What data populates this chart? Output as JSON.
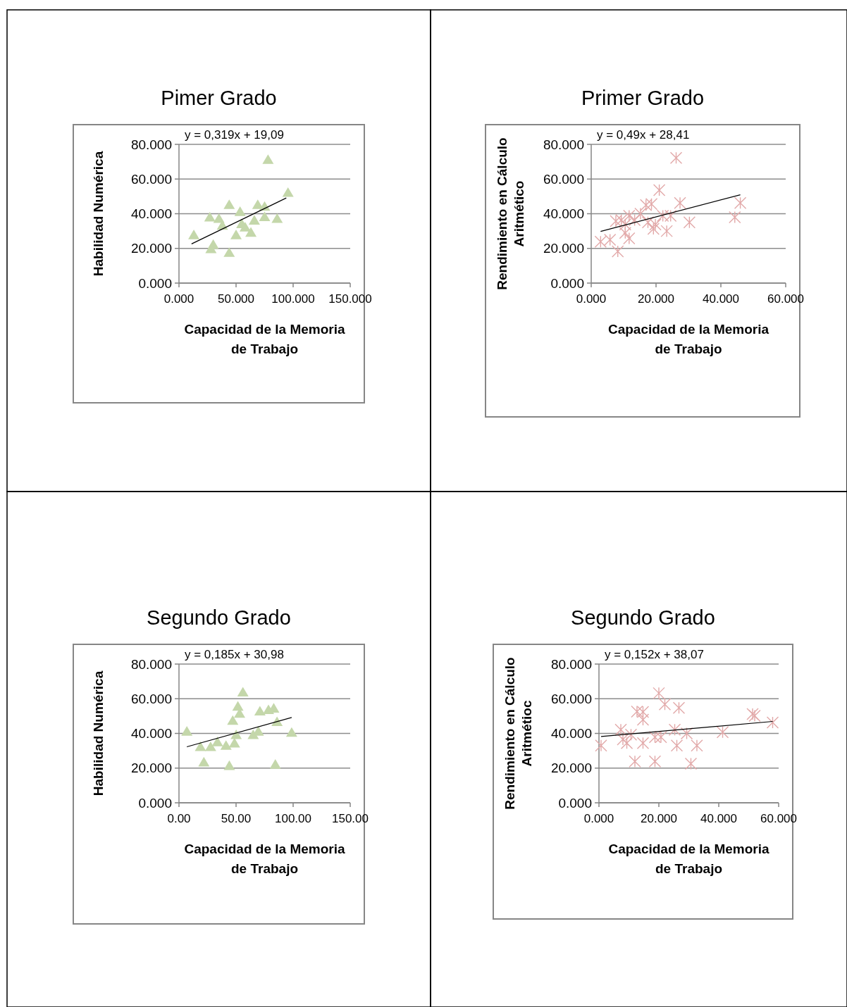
{
  "chart_data": [
    {
      "type": "scatter",
      "title": "Pimer Grado",
      "xlabel": "Capacidad de la Memoria de Trabajo",
      "ylabel": "Habilidad Numérica",
      "marker": "triangle",
      "grid": "y",
      "xlim": [
        0,
        150
      ],
      "xticks": [
        {
          "value": 0,
          "label": "0.000"
        },
        {
          "value": 50,
          "label": "50.000"
        },
        {
          "value": 100,
          "label": "100.000"
        },
        {
          "value": 150,
          "label": "150.000"
        }
      ],
      "ylim": [
        0,
        80
      ],
      "yticks": [
        {
          "value": 0,
          "label": "0.000"
        },
        {
          "value": 20,
          "label": "20.000"
        },
        {
          "value": 40,
          "label": "40.000"
        },
        {
          "value": 60,
          "label": "60.000"
        },
        {
          "value": 80,
          "label": "80.000"
        }
      ],
      "annotations": [
        "y = 0,319x + 19,09"
      ],
      "series": [
        {
          "color": "#c4d7aa",
          "x": [
            13,
            27,
            35,
            30,
            28,
            44,
            44,
            53.5,
            50,
            58,
            63,
            66,
            69,
            75,
            75,
            86,
            78,
            95.5,
            38,
            55
          ],
          "values": [
            27.6,
            37.8,
            37,
            22,
            19.5,
            17.4,
            45,
            41,
            27.6,
            32,
            29,
            36,
            45,
            44,
            38,
            37,
            71,
            52,
            33,
            34
          ]
        },
        {
          "type": "line",
          "color": "#000000",
          "marker": "none",
          "x": [
            11,
            94
          ],
          "values": [
            22.6,
            49.1
          ]
        }
      ]
    },
    {
      "type": "scatter",
      "title": "Primer Grado",
      "xlabel": "Capacidad de la Memoria de Trabajo",
      "ylabel": "Rendimiento en Cálculo Aritmético",
      "marker": "cross",
      "grid": "y",
      "xlim": [
        0,
        60
      ],
      "xticks": [
        {
          "value": 0,
          "label": "0.000"
        },
        {
          "value": 20,
          "label": "20.000"
        },
        {
          "value": 40,
          "label": "40.000"
        },
        {
          "value": 60,
          "label": "60.000"
        }
      ],
      "ylim": [
        0,
        80
      ],
      "yticks": [
        {
          "value": 0,
          "label": "0.000"
        },
        {
          "value": 20,
          "label": "20.000"
        },
        {
          "value": 40,
          "label": "40.000"
        },
        {
          "value": 60,
          "label": "60.000"
        },
        {
          "value": 80,
          "label": "80.000"
        }
      ],
      "annotations": [
        "y = 0,49x + 28,41"
      ],
      "series": [
        {
          "color": "#e2a9a9",
          "x": [
            2.9,
            5.8,
            8.2,
            7.6,
            9.3,
            10.5,
            11.7,
            10.5,
            11.7,
            13.4,
            15.2,
            16.9,
            18.6,
            17.5,
            19.8,
            19.2,
            21,
            22.1,
            24.5,
            23.3,
            27.4,
            30.3,
            26.2,
            44.3,
            46
          ],
          "values": [
            23.9,
            25,
            18.3,
            35.7,
            36.3,
            33.8,
            38.8,
            28.9,
            25.8,
            36.3,
            40,
            45,
            45.6,
            35,
            33.8,
            31.3,
            53.6,
            38.8,
            38.8,
            30,
            46.2,
            35,
            72.2,
            38,
            46.2
          ]
        },
        {
          "type": "line",
          "color": "#000000",
          "marker": "none",
          "x": [
            2.9,
            46
          ],
          "values": [
            29.8,
            50.9
          ]
        }
      ]
    },
    {
      "type": "scatter",
      "title": "Segundo Grado",
      "xlabel": "Capacidad de la Memoria de Trabajo",
      "ylabel": "Habilidad Numérica",
      "marker": "triangle",
      "grid": "y",
      "xlim": [
        0,
        150
      ],
      "xticks": [
        {
          "value": 0,
          "label": "0.00"
        },
        {
          "value": 50,
          "label": "50.00"
        },
        {
          "value": 100,
          "label": "100.00"
        },
        {
          "value": 150,
          "label": "150.00"
        }
      ],
      "ylim": [
        0,
        80
      ],
      "yticks": [
        {
          "value": 0,
          "label": "0.000"
        },
        {
          "value": 20,
          "label": "20.000"
        },
        {
          "value": 40,
          "label": "40.000"
        },
        {
          "value": 60,
          "label": "60.000"
        },
        {
          "value": 80,
          "label": "80.000"
        }
      ],
      "annotations": [
        "y = 0,185x + 30,98"
      ],
      "series": [
        {
          "color": "#c4d7aa",
          "x": [
            6.9,
            21.8,
            18.8,
            27.7,
            33.7,
            44.1,
            41.2,
            48.6,
            50.1,
            47.1,
            51.6,
            53.1,
            56,
            65,
            69.5,
            70.9,
            78.4,
            83,
            84.4,
            85.9,
            98.7
          ],
          "values": [
            41,
            23.2,
            32.1,
            32.1,
            34.9,
            21.2,
            32.8,
            34.2,
            39,
            47.2,
            55.4,
            51.3,
            63.6,
            39,
            41,
            52.6,
            53.4,
            54.3,
            21.9,
            46.5,
            40.3
          ]
        },
        {
          "type": "line",
          "color": "#000000",
          "marker": "none",
          "x": [
            6.9,
            98.7
          ],
          "values": [
            32.3,
            49.2
          ]
        }
      ]
    },
    {
      "type": "scatter",
      "title": "Segundo Grado",
      "xlabel": "Capacidad de la Memoria de Trabajo",
      "ylabel": "Rendimiento en Cálculo Aritmétioc",
      "marker": "cross",
      "grid": "y",
      "xlim": [
        0,
        60
      ],
      "xticks": [
        {
          "value": 0,
          "label": "0.000"
        },
        {
          "value": 20,
          "label": "20.000"
        },
        {
          "value": 40,
          "label": "40.000"
        },
        {
          "value": 60,
          "label": "60.000"
        }
      ],
      "ylim": [
        0,
        80
      ],
      "yticks": [
        {
          "value": 0,
          "label": "0.000"
        },
        {
          "value": 20,
          "label": "20.000"
        },
        {
          "value": 40,
          "label": "40.000"
        },
        {
          "value": 60,
          "label": "60.000"
        },
        {
          "value": 80,
          "label": "80.000"
        }
      ],
      "annotations": [
        "y = 0,152x + 38,07"
      ],
      "series": [
        {
          "color": "#e2a9a9",
          "x": [
            0.7,
            7.3,
            8,
            9.3,
            10.7,
            12,
            12.7,
            14.7,
            14.7,
            14.7,
            18.7,
            20,
            18.7,
            20.7,
            22,
            25.3,
            26.7,
            26,
            29.3,
            30.7,
            32.7,
            41.3,
            51.3,
            52,
            58
          ],
          "values": [
            33,
            42.1,
            36.5,
            34.4,
            39.3,
            23.9,
            52.6,
            52.4,
            47.9,
            34.4,
            23.9,
            63.2,
            37.9,
            37.9,
            56.8,
            42.1,
            54.7,
            33,
            40,
            22.5,
            33,
            40.7,
            51.2,
            50.2,
            46.3
          ]
        },
        {
          "type": "line",
          "color": "#000000",
          "marker": "none",
          "x": [
            0.7,
            58
          ],
          "values": [
            38.2,
            46.9
          ]
        }
      ]
    }
  ]
}
